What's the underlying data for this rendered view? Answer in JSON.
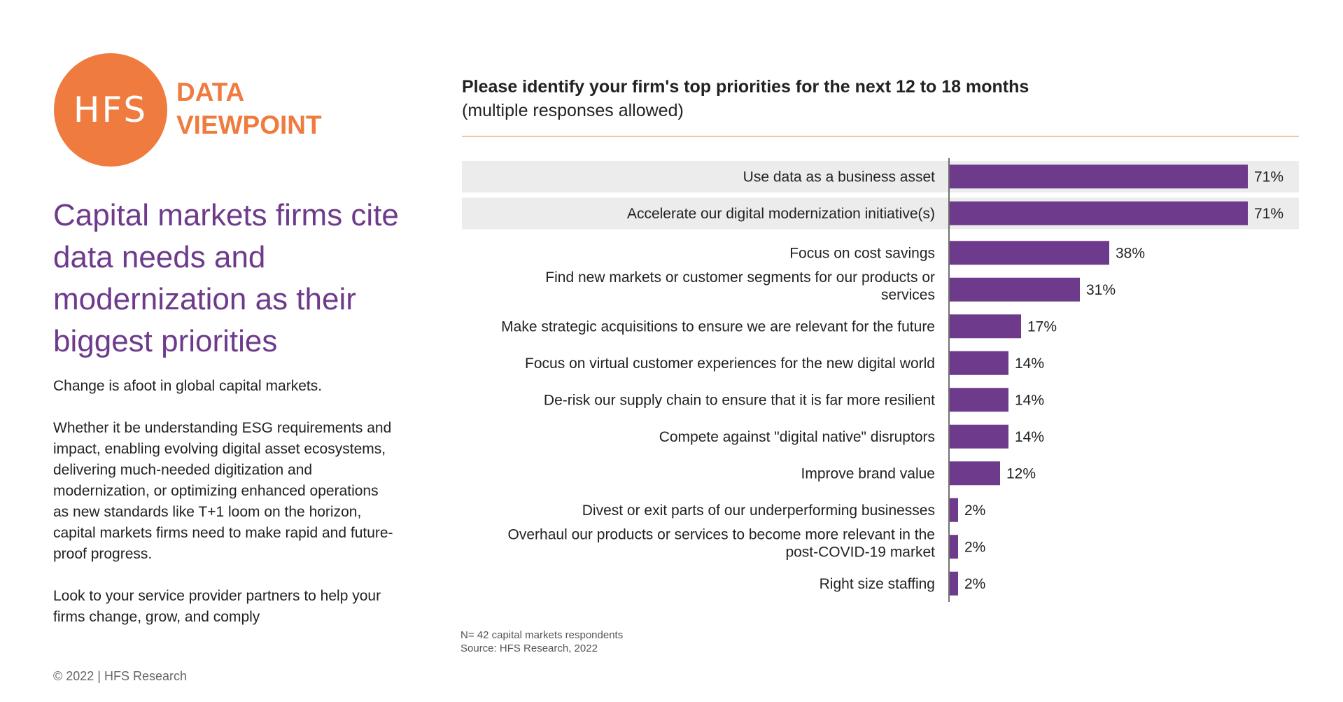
{
  "logo": {
    "brand": "HFS",
    "tagline_line1": "DATA",
    "tagline_line2": "VIEWPOINT"
  },
  "headline": "Capital markets firms cite data needs and modernization as their biggest priorities",
  "body": {
    "p1": "Change is afoot in global capital markets.",
    "p2": "Whether it be understanding ESG requirements and impact, enabling evolving digital asset ecosystems, delivering much-needed digitization and modernization, or optimizing enhanced operations as new standards like T+1 loom on the horizon, capital markets firms need to make rapid and future-proof progress.",
    "p3": "Look to your service provider partners to help your firms change, grow, and comply"
  },
  "copyright": "© 2022 | HFS Research",
  "footnote": {
    "line1": "N= 42 capital markets respondents",
    "line2": "Source: HFS Research, 2022"
  },
  "colors": {
    "accent": "#ef7b3f",
    "bar": "#6e3a8c",
    "headline": "#6e3a8c",
    "highlight_row": "#ececec"
  },
  "chart_data": {
    "type": "bar",
    "orientation": "horizontal",
    "title": "Please identify your firm's top priorities for the next 12 to 18 months",
    "subtitle": "(multiple responses allowed)",
    "categories": [
      [
        "Use data as a business asset"
      ],
      [
        "Accelerate our digital modernization initiative(s)"
      ],
      [
        "Focus on cost savings"
      ],
      [
        "Find new markets or customer segments for our products or",
        "services"
      ],
      [
        "Make strategic acquisitions to ensure we are relevant for the future"
      ],
      [
        "Focus on virtual customer experiences for the new digital world"
      ],
      [
        "De-risk our supply chain to ensure that it is far more resilient"
      ],
      [
        "Compete against \"digital native\" disruptors"
      ],
      [
        "Improve brand value"
      ],
      [
        "Divest or exit parts of our underperforming businesses"
      ],
      [
        "Overhaul our products or services to become more relevant in the",
        "post-COVID-19 market"
      ],
      [
        "Right size staffing"
      ]
    ],
    "values": [
      71,
      71,
      38,
      31,
      17,
      14,
      14,
      14,
      12,
      2,
      2,
      2
    ],
    "labels": [
      "71%",
      "71%",
      "38%",
      "31%",
      "17%",
      "14%",
      "14%",
      "14%",
      "12%",
      "2%",
      "2%",
      "2%"
    ],
    "highlighted": [
      true,
      true,
      false,
      false,
      false,
      false,
      false,
      false,
      false,
      false,
      false,
      false
    ],
    "xlim": [
      0,
      100
    ],
    "unit": "%"
  }
}
